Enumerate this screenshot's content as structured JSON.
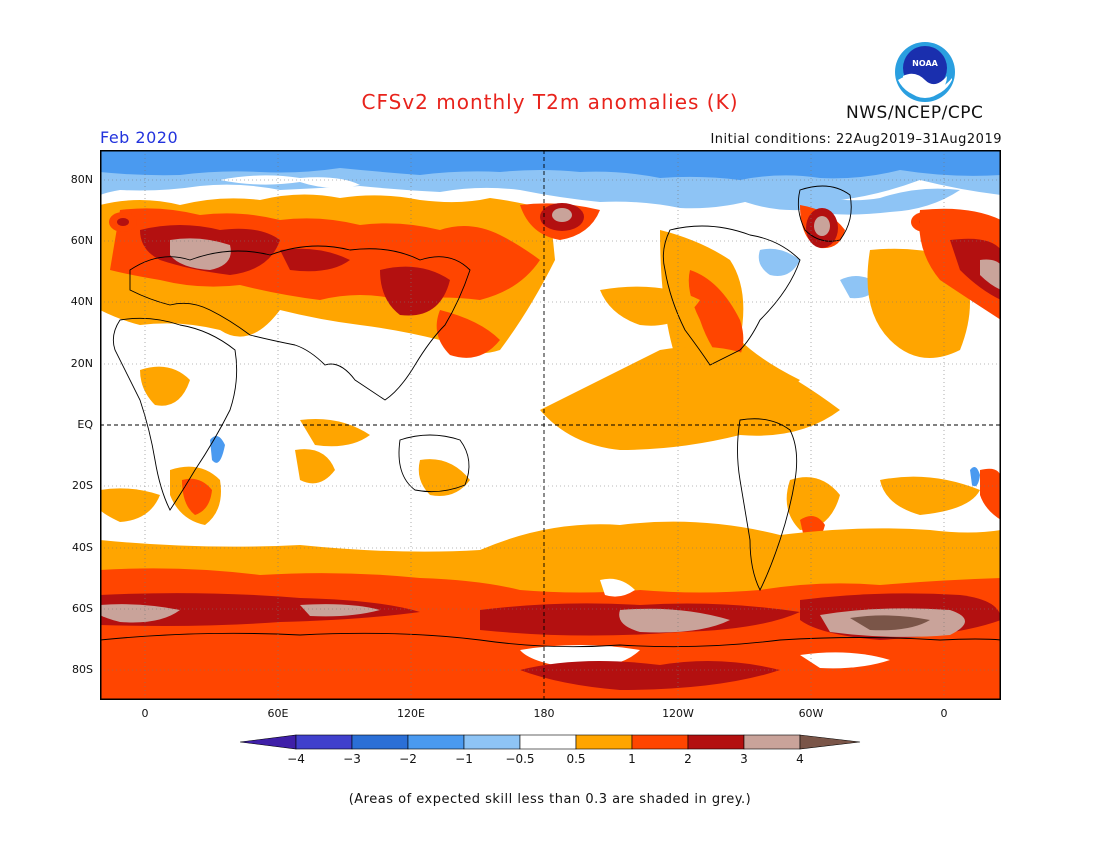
{
  "header": {
    "title": "CFSv2 monthly T2m anomalies (K)",
    "agency": "NWS/NCEP/CPC",
    "logo_text": "NOAA",
    "month": "Feb 2020",
    "initial_conditions": "Initial conditions: 22Aug2019–31Aug2019"
  },
  "axes": {
    "lat_labels": [
      "80N",
      "60N",
      "40N",
      "20N",
      "EQ",
      "20S",
      "40S",
      "60S",
      "80S"
    ],
    "lon_labels": [
      "0",
      "60E",
      "120E",
      "180",
      "120W",
      "60W",
      "0"
    ]
  },
  "colorbar": {
    "labels": [
      "−4",
      "−3",
      "−2",
      "−1",
      "−0.5",
      "0.5",
      "1",
      "2",
      "3",
      "4"
    ],
    "colors": [
      "#3f1fa8",
      "#4040cc",
      "#2b6fd6",
      "#4a9af0",
      "#8ec4f5",
      "#ffffff",
      "#ffa500",
      "#ff4500",
      "#b31010",
      "#c9a39a",
      "#7a5548"
    ]
  },
  "footer": {
    "note": "(Areas of expected skill less than 0.3 are shaded in grey.)"
  }
}
